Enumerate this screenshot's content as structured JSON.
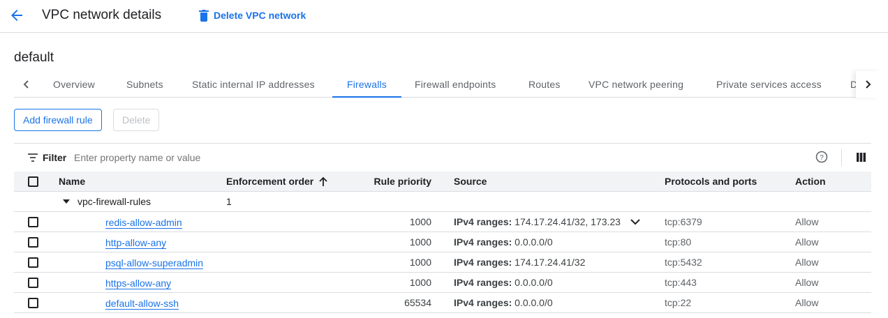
{
  "header": {
    "title": "VPC network details",
    "delete_label": "Delete VPC network",
    "back_icon": "arrow-back-icon"
  },
  "network_name": "default",
  "tabs": [
    "Overview",
    "Subnets",
    "Static internal IP addresses",
    "Firewalls",
    "Firewall endpoints",
    "Routes",
    "VPC network peering",
    "Private services access",
    "D"
  ],
  "active_tab": "Firewalls",
  "actions": {
    "add": "Add firewall rule",
    "delete": "Delete"
  },
  "filter": {
    "label": "Filter",
    "placeholder": "Enter property name or value"
  },
  "columns": {
    "name": "Name",
    "order": "Enforcement order",
    "priority": "Rule priority",
    "source": "Source",
    "protocols": "Protocols and ports",
    "action": "Action"
  },
  "group": {
    "name": "vpc-firewall-rules",
    "order": "1"
  },
  "source_prefix": "IPv4 ranges:",
  "rules": [
    {
      "name": "redis-allow-admin",
      "priority": "1000",
      "source": "174.17.24.41/32, 173.23",
      "protocols": "tcp:6379",
      "action": "Allow",
      "expandable": true
    },
    {
      "name": "http-allow-any",
      "priority": "1000",
      "source": "0.0.0.0/0",
      "protocols": "tcp:80",
      "action": "Allow"
    },
    {
      "name": "psql-allow-superadmin",
      "priority": "1000",
      "source": "174.17.24.41/32",
      "protocols": "tcp:5432",
      "action": "Allow"
    },
    {
      "name": "https-allow-any",
      "priority": "1000",
      "source": "0.0.0.0/0",
      "protocols": "tcp:443",
      "action": "Allow"
    },
    {
      "name": "default-allow-ssh",
      "priority": "65534",
      "source": "0.0.0.0/0",
      "protocols": "tcp:22",
      "action": "Allow"
    }
  ],
  "colors": {
    "accent": "#1a73e8",
    "header_bg": "#f1f3f4"
  }
}
